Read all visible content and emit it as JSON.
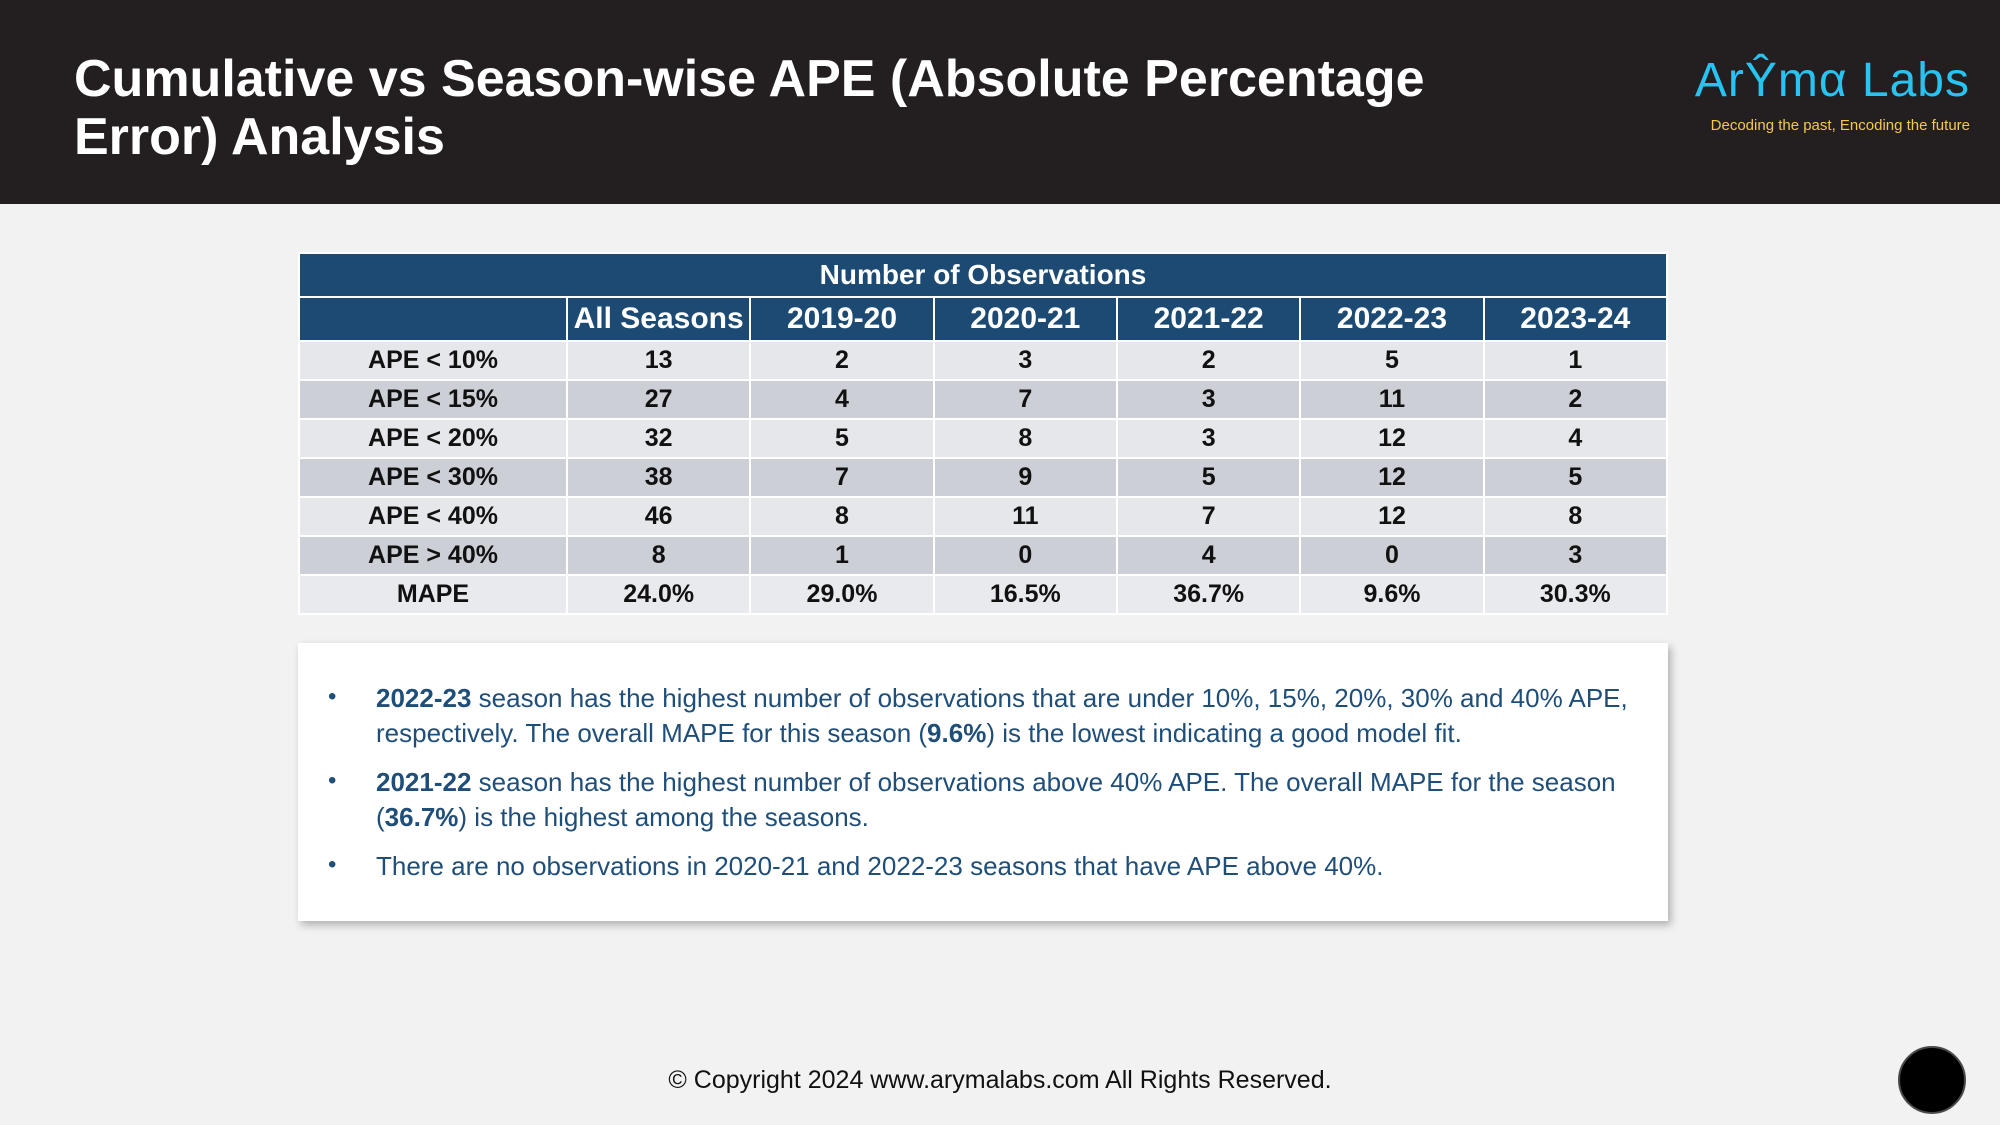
{
  "header": {
    "title": "Cumulative vs Season-wise APE (Absolute Percentage Error) Analysis",
    "logo_name": "ArŶmα Labs",
    "logo_tagline": "Decoding the past, Encoding the future",
    "background": "#231f20",
    "logo_color": "#29c3f2",
    "tagline_color": "#f2c94c"
  },
  "table": {
    "caption": "Number of Observations",
    "columns": [
      "",
      "All Seasons",
      "2019-20",
      "2020-21",
      "2021-22",
      "2022-23",
      "2023-24"
    ],
    "rows": [
      {
        "label": "APE < 10%",
        "values": [
          "13",
          "2",
          "3",
          "2",
          "5",
          "1"
        ]
      },
      {
        "label": "APE < 15%",
        "values": [
          "27",
          "4",
          "7",
          "3",
          "11",
          "2"
        ]
      },
      {
        "label": "APE < 20%",
        "values": [
          "32",
          "5",
          "8",
          "3",
          "12",
          "4"
        ]
      },
      {
        "label": "APE < 30%",
        "values": [
          "38",
          "7",
          "9",
          "5",
          "12",
          "5"
        ]
      },
      {
        "label": "APE < 40%",
        "values": [
          "46",
          "8",
          "11",
          "7",
          "12",
          "8"
        ]
      },
      {
        "label": "APE > 40%",
        "values": [
          "8",
          "1",
          "0",
          "4",
          "0",
          "3"
        ]
      },
      {
        "label": "MAPE",
        "values": [
          "24.0%",
          "29.0%",
          "16.5%",
          "36.7%",
          "9.6%",
          "30.3%"
        ]
      }
    ],
    "header_color": "#1d4a72"
  },
  "notes": [
    {
      "p1_bold": "2022-23",
      "p2": " season has the highest number of observations that are under 10%, 15%, 20%, 30% and 40% APE, respectively. The overall MAPE for this season (",
      "p3_bold": "9.6%",
      "p4": ") is the lowest indicating a good model fit."
    },
    {
      "p1_bold": "2021-22",
      "p2": " season has the highest number of observations above 40% APE. The overall MAPE for the season (",
      "p3_bold": "36.7%",
      "p4": ") is the highest among the seasons."
    },
    {
      "p1_bold": "",
      "p2": "There are no observations in 2020-21 and 2022-23 seasons that have APE above 40%.",
      "p3_bold": "",
      "p4": ""
    }
  ],
  "bullet": "•",
  "footer": "© Copyright 2024 www.arymalabs.com All Rights Reserved."
}
